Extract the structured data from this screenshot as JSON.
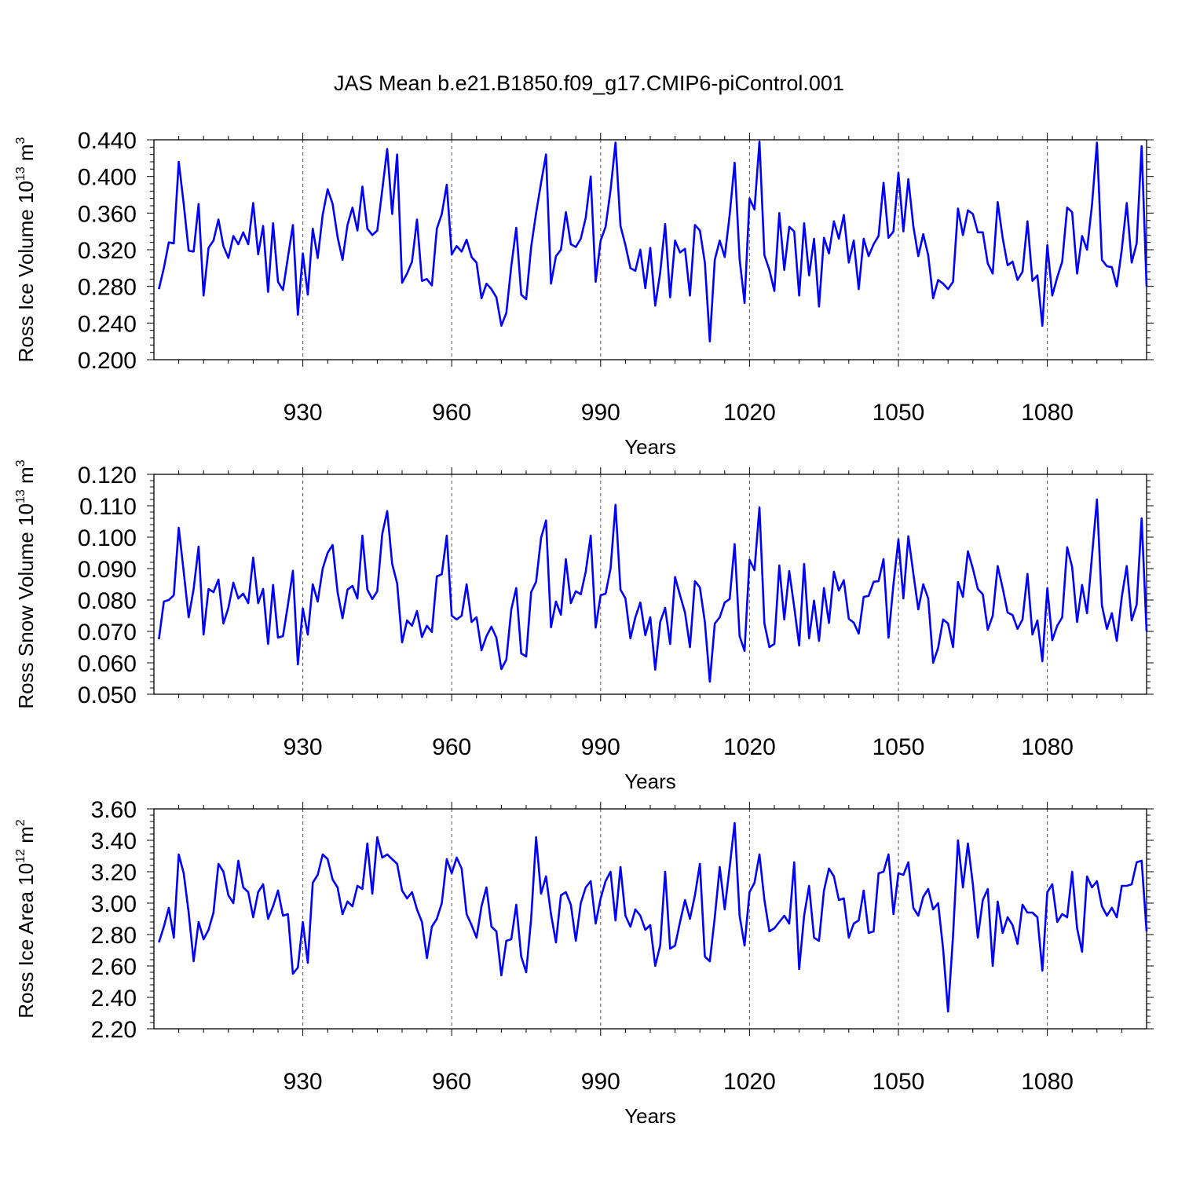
{
  "title": "JAS Mean b.e21.B1850.f09_g17.CMIP6-piControl.001",
  "colors": {
    "line": "#0000ff",
    "axis": "#000000",
    "grid": "#555555"
  },
  "chart_data": [
    {
      "type": "line",
      "ylabel": "Ross Ice Volume 10",
      "ylabel_sup": "13",
      "ylabel_unit": " m",
      "ylabel_unit_sup": "3",
      "xlabel": "Years",
      "xlim": [
        900,
        1100
      ],
      "ylim": [
        0.2,
        0.44
      ],
      "grid_x": true,
      "xtick_values": [
        930,
        960,
        990,
        1020,
        1050,
        1080
      ],
      "xtick_labels": [
        "930",
        "960",
        "990",
        "1020",
        "1050",
        "1080"
      ],
      "ytick_values": [
        0.2,
        0.24,
        0.28,
        0.32,
        0.36,
        0.4,
        0.44
      ],
      "ytick_labels": [
        "0.200",
        "0.240",
        "0.280",
        "0.320",
        "0.360",
        "0.400",
        "0.440"
      ],
      "x_start": 901,
      "series": [
        {
          "name": "Ross Ice Volume",
          "values": [
            0.277,
            0.3,
            0.328,
            0.327,
            0.416,
            0.37,
            0.319,
            0.318,
            0.37,
            0.27,
            0.322,
            0.33,
            0.353,
            0.324,
            0.311,
            0.335,
            0.326,
            0.339,
            0.326,
            0.371,
            0.315,
            0.346,
            0.274,
            0.349,
            0.285,
            0.276,
            0.312,
            0.347,
            0.249,
            0.316,
            0.271,
            0.343,
            0.311,
            0.358,
            0.386,
            0.37,
            0.334,
            0.309,
            0.347,
            0.366,
            0.341,
            0.389,
            0.343,
            0.336,
            0.341,
            0.385,
            0.43,
            0.359,
            0.424,
            0.284,
            0.294,
            0.307,
            0.353,
            0.286,
            0.288,
            0.281,
            0.343,
            0.359,
            0.391,
            0.315,
            0.324,
            0.318,
            0.331,
            0.312,
            0.306,
            0.267,
            0.283,
            0.277,
            0.268,
            0.237,
            0.251,
            0.302,
            0.344,
            0.271,
            0.266,
            0.323,
            0.36,
            0.393,
            0.424,
            0.283,
            0.313,
            0.32,
            0.361,
            0.326,
            0.323,
            0.332,
            0.355,
            0.4,
            0.285,
            0.33,
            0.345,
            0.385,
            0.437,
            0.346,
            0.325,
            0.3,
            0.297,
            0.32,
            0.278,
            0.322,
            0.259,
            0.295,
            0.348,
            0.268,
            0.33,
            0.317,
            0.321,
            0.27,
            0.347,
            0.341,
            0.306,
            0.22,
            0.309,
            0.33,
            0.312,
            0.358,
            0.415,
            0.31,
            0.262,
            0.376,
            0.364,
            0.438,
            0.314,
            0.298,
            0.275,
            0.36,
            0.298,
            0.345,
            0.34,
            0.27,
            0.349,
            0.292,
            0.332,
            0.258,
            0.333,
            0.316,
            0.351,
            0.332,
            0.358,
            0.306,
            0.33,
            0.277,
            0.332,
            0.313,
            0.326,
            0.335,
            0.393,
            0.333,
            0.34,
            0.404,
            0.34,
            0.397,
            0.346,
            0.313,
            0.337,
            0.314,
            0.267,
            0.287,
            0.283,
            0.277,
            0.285,
            0.365,
            0.336,
            0.363,
            0.359,
            0.339,
            0.339,
            0.305,
            0.294,
            0.372,
            0.333,
            0.303,
            0.307,
            0.287,
            0.296,
            0.351,
            0.286,
            0.292,
            0.237,
            0.325,
            0.27,
            0.29,
            0.307,
            0.366,
            0.361,
            0.294,
            0.335,
            0.32,
            0.369,
            0.437,
            0.309,
            0.302,
            0.301,
            0.28,
            0.32,
            0.371,
            0.306,
            0.327,
            0.433,
            0.28
          ]
        }
      ]
    },
    {
      "type": "line",
      "ylabel": "Ross Snow Volume 10",
      "ylabel_sup": "13",
      "ylabel_unit": " m",
      "ylabel_unit_sup": "3",
      "xlabel": "Years",
      "xlim": [
        900,
        1100
      ],
      "ylim": [
        0.05,
        0.12
      ],
      "grid_x": true,
      "xtick_values": [
        930,
        960,
        990,
        1020,
        1050,
        1080
      ],
      "xtick_labels": [
        "930",
        "960",
        "990",
        "1020",
        "1050",
        "1080"
      ],
      "ytick_values": [
        0.05,
        0.06,
        0.07,
        0.08,
        0.09,
        0.1,
        0.11,
        0.12
      ],
      "ytick_labels": [
        "0.050",
        "0.060",
        "0.070",
        "0.080",
        "0.090",
        "0.100",
        "0.110",
        "0.120"
      ],
      "x_start": 901,
      "series": [
        {
          "name": "Ross Snow Volume",
          "values": [
            0.0675,
            0.0795,
            0.08,
            0.0815,
            0.103,
            0.089,
            0.0745,
            0.0835,
            0.097,
            0.069,
            0.0835,
            0.0825,
            0.0865,
            0.0725,
            0.0775,
            0.0855,
            0.0805,
            0.082,
            0.079,
            0.0935,
            0.079,
            0.0835,
            0.066,
            0.0848,
            0.068,
            0.0685,
            0.0785,
            0.0893,
            0.0595,
            0.0773,
            0.069,
            0.085,
            0.0795,
            0.09,
            0.095,
            0.0975,
            0.0825,
            0.0742,
            0.0833,
            0.0845,
            0.0805,
            0.1005,
            0.0833,
            0.0803,
            0.0828,
            0.101,
            0.1083,
            0.0915,
            0.0853,
            0.0665,
            0.0735,
            0.0718,
            0.0765,
            0.0682,
            0.0718,
            0.0698,
            0.0875,
            0.0882,
            0.1005,
            0.075,
            0.0738,
            0.075,
            0.085,
            0.073,
            0.0745,
            0.064,
            0.0685,
            0.0715,
            0.068,
            0.058,
            0.061,
            0.077,
            0.0838,
            0.063,
            0.062,
            0.0825,
            0.0858,
            0.0998,
            0.1053,
            0.0713,
            0.0795,
            0.0753,
            0.093,
            0.079,
            0.0828,
            0.0818,
            0.089,
            0.1005,
            0.0712,
            0.0815,
            0.082,
            0.09,
            0.1103,
            0.0833,
            0.0805,
            0.0678,
            0.0745,
            0.0792,
            0.0688,
            0.0745,
            0.0578,
            0.073,
            0.0775,
            0.066,
            0.0873,
            0.0815,
            0.076,
            0.065,
            0.086,
            0.084,
            0.073,
            0.054,
            0.0725,
            0.0745,
            0.0792,
            0.0803,
            0.0978,
            0.0685,
            0.0638,
            0.0928,
            0.0895,
            0.1095,
            0.0725,
            0.065,
            0.066,
            0.091,
            0.0738,
            0.0892,
            0.0778,
            0.0655,
            0.0915,
            0.0678,
            0.0798,
            0.067,
            0.0838,
            0.0727,
            0.089,
            0.083,
            0.0863,
            0.074,
            0.0728,
            0.0693,
            0.081,
            0.0813,
            0.0858,
            0.086,
            0.093,
            0.068,
            0.085,
            0.0993,
            0.0805,
            0.1003,
            0.0885,
            0.077,
            0.085,
            0.0805,
            0.06,
            0.0648,
            0.0738,
            0.0725,
            0.065,
            0.0857,
            0.081,
            0.0955,
            0.09,
            0.0835,
            0.0818,
            0.0705,
            0.075,
            0.0908,
            0.0838,
            0.076,
            0.0752,
            0.0708,
            0.0738,
            0.0883,
            0.069,
            0.0735,
            0.0605,
            0.0838,
            0.0672,
            0.0718,
            0.0745,
            0.0968,
            0.0905,
            0.073,
            0.0848,
            0.0758,
            0.094,
            0.112,
            0.0783,
            0.0708,
            0.0758,
            0.067,
            0.081,
            0.0908,
            0.0735,
            0.0785,
            0.106,
            0.07
          ]
        }
      ]
    },
    {
      "type": "line",
      "ylabel": "Ross Ice Area 10",
      "ylabel_sup": "12",
      "ylabel_unit": " m",
      "ylabel_unit_sup": "2",
      "xlabel": "Years",
      "xlim": [
        900,
        1100
      ],
      "ylim": [
        2.2,
        3.6
      ],
      "grid_x": true,
      "xtick_values": [
        930,
        960,
        990,
        1020,
        1050,
        1080
      ],
      "xtick_labels": [
        "930",
        "960",
        "990",
        "1020",
        "1050",
        "1080"
      ],
      "ytick_values": [
        2.2,
        2.4,
        2.6,
        2.8,
        3.0,
        3.2,
        3.4,
        3.6
      ],
      "ytick_labels": [
        "2.20",
        "2.40",
        "2.60",
        "2.80",
        "3.00",
        "3.20",
        "3.40",
        "3.60"
      ],
      "x_start": 901,
      "series": [
        {
          "name": "Ross Ice Area",
          "values": [
            2.75,
            2.85,
            2.97,
            2.78,
            3.31,
            3.19,
            2.94,
            2.63,
            2.88,
            2.77,
            2.83,
            2.94,
            3.25,
            3.2,
            3.05,
            3.0,
            3.27,
            3.1,
            3.07,
            2.91,
            3.07,
            3.12,
            2.9,
            2.98,
            3.08,
            2.92,
            2.93,
            2.55,
            2.59,
            2.88,
            2.62,
            3.13,
            3.18,
            3.31,
            3.28,
            3.15,
            3.1,
            2.93,
            3.01,
            2.98,
            3.11,
            3.09,
            3.38,
            3.06,
            3.42,
            3.29,
            3.31,
            3.28,
            3.25,
            3.08,
            3.03,
            3.07,
            2.96,
            2.88,
            2.65,
            2.85,
            2.9,
            3.0,
            3.28,
            3.19,
            3.29,
            3.22,
            2.93,
            2.86,
            2.78,
            2.98,
            3.1,
            2.85,
            2.82,
            2.54,
            2.76,
            2.77,
            2.99,
            2.66,
            2.56,
            2.9,
            3.42,
            3.06,
            3.17,
            2.93,
            2.75,
            3.05,
            3.07,
            2.99,
            2.76,
            3.0,
            3.1,
            3.14,
            2.87,
            3.03,
            3.14,
            3.2,
            2.89,
            3.23,
            2.92,
            2.85,
            2.96,
            2.92,
            2.83,
            2.86,
            2.6,
            2.73,
            3.2,
            2.71,
            2.73,
            2.88,
            3.02,
            2.9,
            3.05,
            3.25,
            2.66,
            2.63,
            2.91,
            3.23,
            2.96,
            3.23,
            3.51,
            2.92,
            2.73,
            3.07,
            3.13,
            3.31,
            3.02,
            2.82,
            2.84,
            2.88,
            2.92,
            2.87,
            3.26,
            2.58,
            2.92,
            3.11,
            2.78,
            2.76,
            3.08,
            3.22,
            3.17,
            3.02,
            3.03,
            2.78,
            2.87,
            2.89,
            3.08,
            2.81,
            2.82,
            3.19,
            3.2,
            3.31,
            2.93,
            3.19,
            3.18,
            3.26,
            2.97,
            2.92,
            3.04,
            3.09,
            2.96,
            3.0,
            2.71,
            2.31,
            2.79,
            3.4,
            3.1,
            3.38,
            3.12,
            2.78,
            3.02,
            3.09,
            2.6,
            3.01,
            2.81,
            2.91,
            2.86,
            2.74,
            2.99,
            2.94,
            2.94,
            2.91,
            2.57,
            3.07,
            3.12,
            2.88,
            2.93,
            2.91,
            3.2,
            2.84,
            2.69,
            3.17,
            3.1,
            3.14,
            2.98,
            2.92,
            2.97,
            2.91,
            3.11,
            3.11,
            3.12,
            3.26,
            3.27,
            2.82
          ]
        }
      ]
    }
  ]
}
